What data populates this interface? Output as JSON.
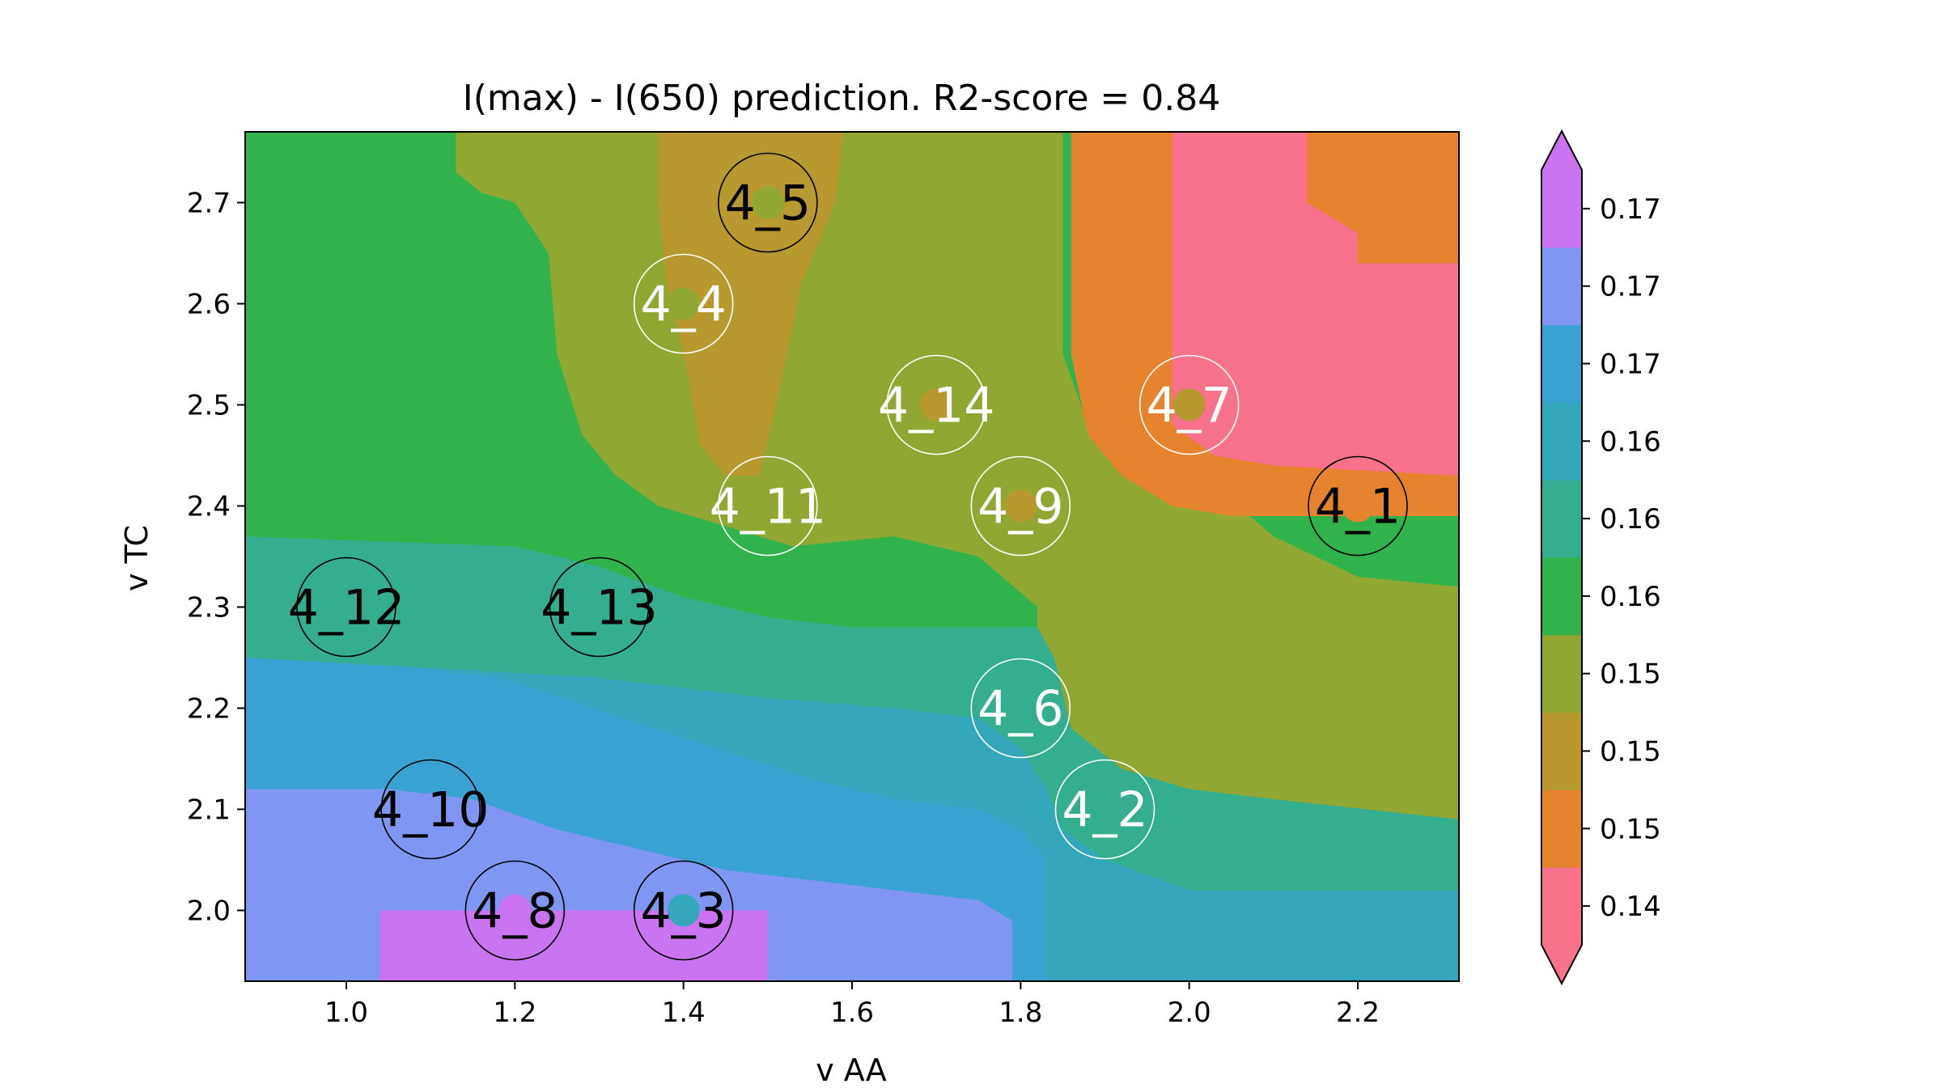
{
  "chart_data": {
    "type": "heatmap",
    "title": "I(max) - I(650) prediction. R2-score = 0.84",
    "xlabel": "v AA",
    "ylabel": "v TC",
    "xlim": [
      0.88,
      2.32
    ],
    "ylim": [
      1.93,
      2.77
    ],
    "x_ticks": [
      "1.0",
      "1.2",
      "1.4",
      "1.6",
      "1.8",
      "2.0",
      "2.2"
    ],
    "x_tick_values": [
      1.0,
      1.2,
      1.4,
      1.6,
      1.8,
      2.0,
      2.2
    ],
    "y_ticks": [
      "2.0",
      "2.1",
      "2.2",
      "2.3",
      "2.4",
      "2.5",
      "2.6",
      "2.7"
    ],
    "y_tick_values": [
      2.0,
      2.1,
      2.2,
      2.3,
      2.4,
      2.5,
      2.6,
      2.7
    ],
    "colorbar": {
      "tick_labels": [
        "0.14",
        "0.15",
        "0.15",
        "0.15",
        "0.16",
        "0.16",
        "0.16",
        "0.17",
        "0.17",
        "0.17"
      ],
      "level_colors": [
        "#f7728a",
        "#e5832f",
        "#b79930",
        "#91a733",
        "#31b24a",
        "#34ae8f",
        "#35a7bd",
        "#3aa2d3",
        "#7f97f2",
        "#cb74f2"
      ],
      "extend": "both"
    },
    "points": [
      {
        "label": "4_1",
        "x": 2.2,
        "y": 2.4,
        "level": 1
      },
      {
        "label": "4_2",
        "x": 1.9,
        "y": 2.1,
        "level": 5
      },
      {
        "label": "4_3",
        "x": 1.4,
        "y": 2.0,
        "level": 6
      },
      {
        "label": "4_4",
        "x": 1.4,
        "y": 2.6,
        "level": 3
      },
      {
        "label": "4_5",
        "x": 1.5,
        "y": 2.7,
        "level": 3
      },
      {
        "label": "4_6",
        "x": 1.8,
        "y": 2.2,
        "level": 5
      },
      {
        "label": "4_7",
        "x": 2.0,
        "y": 2.5,
        "level": 2
      },
      {
        "label": "4_8",
        "x": 1.2,
        "y": 2.0,
        "level": 9
      },
      {
        "label": "4_9",
        "x": 1.8,
        "y": 2.4,
        "level": 2
      },
      {
        "label": "4_10",
        "x": 1.1,
        "y": 2.1,
        "level": 8
      },
      {
        "label": "4_11",
        "x": 1.5,
        "y": 2.4,
        "level": 3
      },
      {
        "label": "4_12",
        "x": 1.0,
        "y": 2.3,
        "level": 5
      },
      {
        "label": "4_13",
        "x": 1.3,
        "y": 2.3,
        "level": 5
      },
      {
        "label": "4_14",
        "x": 1.7,
        "y": 2.5,
        "level": 2
      }
    ],
    "grid": false,
    "legend": "colorbar-right"
  }
}
